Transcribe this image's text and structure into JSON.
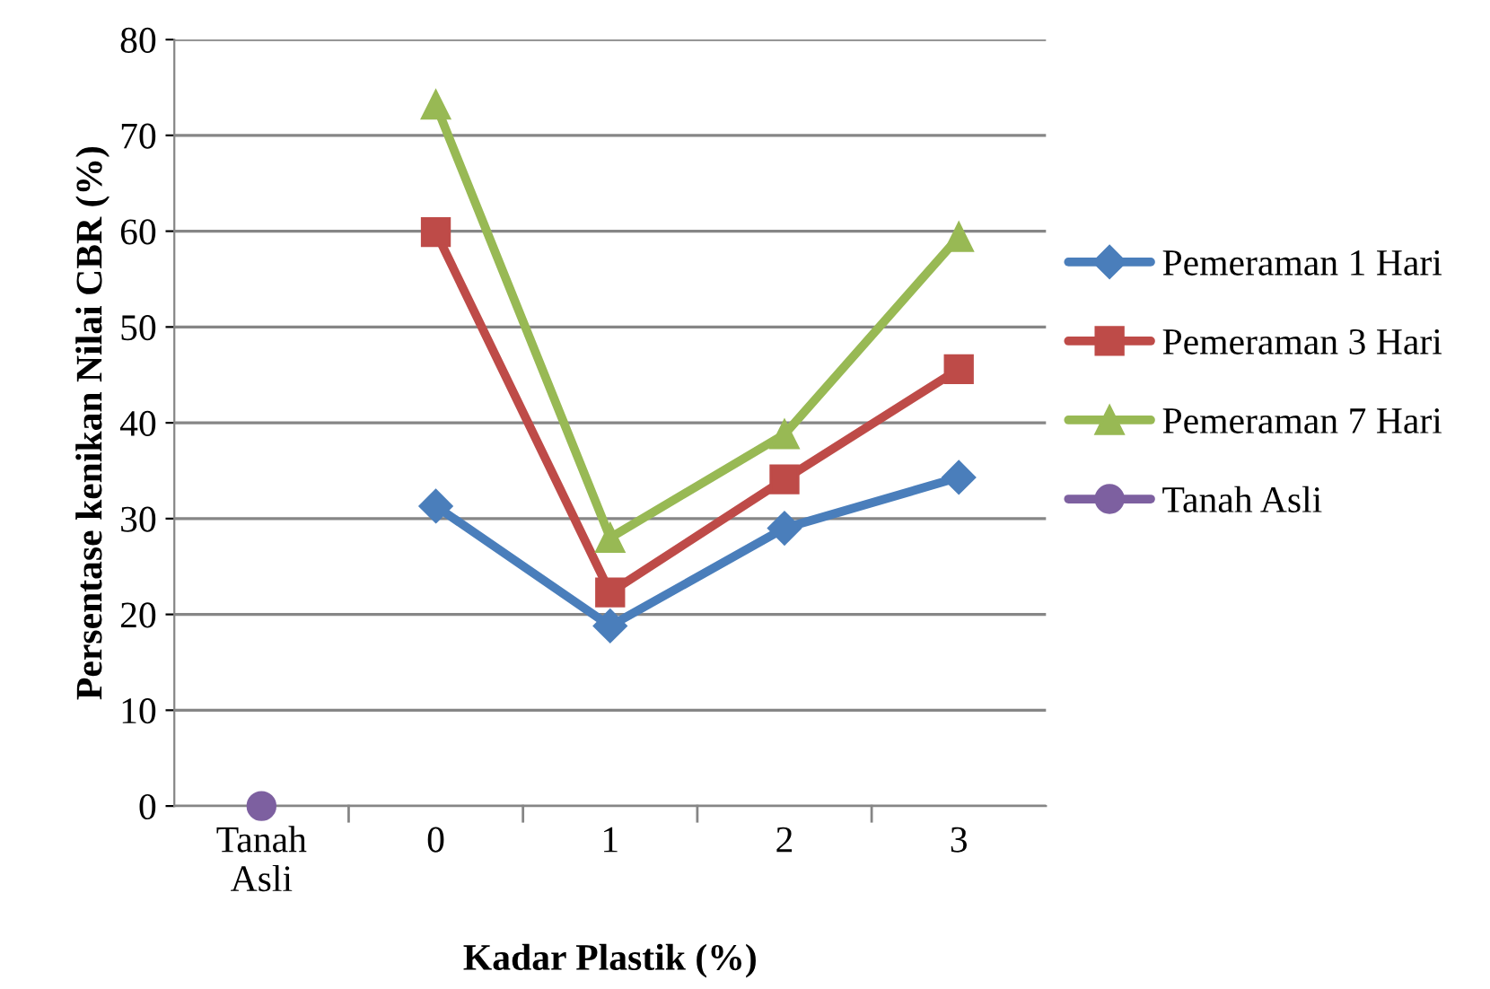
{
  "chart_data": {
    "type": "line",
    "xlabel": "Kadar Plastik (%)",
    "ylabel": "Persentase kenikan Nilai CBR (%)",
    "categories": [
      "Tanah\nAsli",
      "0",
      "1",
      "2",
      "3"
    ],
    "series": [
      {
        "name": "Pemeraman 1 Hari",
        "color": "#4a7ebb",
        "marker": "diamond",
        "values": [
          null,
          31.3,
          18.8,
          29.0,
          34.3
        ]
      },
      {
        "name": "Pemeraman 3 Hari",
        "color": "#be4b48",
        "marker": "square",
        "values": [
          null,
          59.9,
          22.3,
          34.1,
          45.6
        ]
      },
      {
        "name": "Pemeraman 7 Hari",
        "color": "#98b954",
        "marker": "triangle",
        "values": [
          null,
          73.2,
          28.0,
          38.8,
          59.4
        ]
      },
      {
        "name": "Tanah Asli",
        "color": "#7d60a0",
        "marker": "circle",
        "values": [
          0,
          null,
          null,
          null,
          null
        ]
      }
    ],
    "ylim": [
      0,
      80
    ],
    "yticks": [
      0,
      10,
      20,
      30,
      40,
      50,
      60,
      70,
      80
    ],
    "grid": "y",
    "legend": "right",
    "line_style": "solid"
  }
}
